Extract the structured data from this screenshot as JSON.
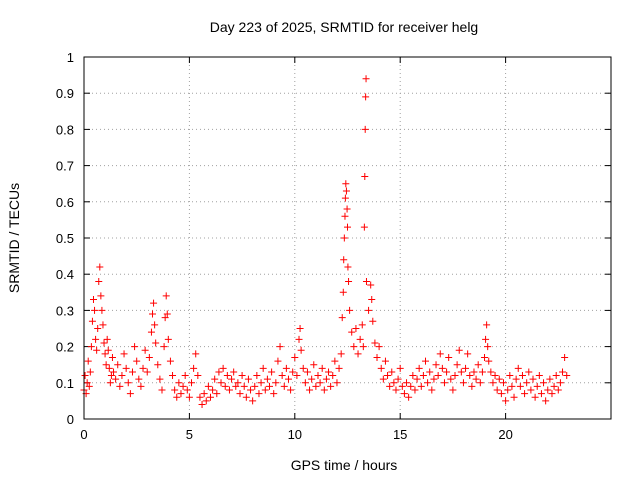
{
  "chart_data": {
    "type": "scatter",
    "title": "Day 223 of 2025, SRMTID for receiver helg",
    "xlabel": "GPS time / hours",
    "ylabel": "SRMTID / TECUs",
    "xlim": [
      0,
      25
    ],
    "ylim": [
      0,
      1
    ],
    "xticks": [
      0,
      5,
      10,
      15,
      20
    ],
    "xtick_labels": [
      "0",
      "5",
      "10",
      "15",
      "20"
    ],
    "yticks": [
      0,
      0.1,
      0.2,
      0.3,
      0.4,
      0.5,
      0.6,
      0.7,
      0.8,
      0.9,
      1
    ],
    "ytick_labels": [
      "0",
      "0.1",
      "0.2",
      "0.3",
      "0.4",
      "0.5",
      "0.6",
      "0.7",
      "0.8",
      "0.9",
      "1"
    ],
    "grid": true,
    "marker": "+",
    "color": "#ff0000",
    "series": [
      {
        "name": "SRMTID",
        "points": [
          [
            0.0,
            0.08
          ],
          [
            0.05,
            0.12
          ],
          [
            0.1,
            0.07
          ],
          [
            0.15,
            0.1
          ],
          [
            0.2,
            0.16
          ],
          [
            0.25,
            0.09
          ],
          [
            0.3,
            0.13
          ],
          [
            0.35,
            0.2
          ],
          [
            0.4,
            0.27
          ],
          [
            0.45,
            0.33
          ],
          [
            0.5,
            0.3
          ],
          [
            0.55,
            0.22
          ],
          [
            0.6,
            0.19
          ],
          [
            0.65,
            0.25
          ],
          [
            0.7,
            0.38
          ],
          [
            0.75,
            0.42
          ],
          [
            0.8,
            0.34
          ],
          [
            0.85,
            0.3
          ],
          [
            0.9,
            0.26
          ],
          [
            0.95,
            0.21
          ],
          [
            1.0,
            0.18
          ],
          [
            1.05,
            0.15
          ],
          [
            1.1,
            0.22
          ],
          [
            1.15,
            0.19
          ],
          [
            1.2,
            0.14
          ],
          [
            1.25,
            0.1
          ],
          [
            1.3,
            0.12
          ],
          [
            1.35,
            0.17
          ],
          [
            1.4,
            0.13
          ],
          [
            1.5,
            0.11
          ],
          [
            1.6,
            0.15
          ],
          [
            1.7,
            0.09
          ],
          [
            1.8,
            0.12
          ],
          [
            1.9,
            0.18
          ],
          [
            2.0,
            0.14
          ],
          [
            2.1,
            0.1
          ],
          [
            2.2,
            0.07
          ],
          [
            2.3,
            0.13
          ],
          [
            2.4,
            0.2
          ],
          [
            2.5,
            0.16
          ],
          [
            2.6,
            0.11
          ],
          [
            2.7,
            0.09
          ],
          [
            2.8,
            0.14
          ],
          [
            2.9,
            0.19
          ],
          [
            3.0,
            0.13
          ],
          [
            3.1,
            0.17
          ],
          [
            3.2,
            0.24
          ],
          [
            3.25,
            0.29
          ],
          [
            3.3,
            0.32
          ],
          [
            3.35,
            0.26
          ],
          [
            3.4,
            0.21
          ],
          [
            3.5,
            0.15
          ],
          [
            3.6,
            0.11
          ],
          [
            3.7,
            0.08
          ],
          [
            3.8,
            0.2
          ],
          [
            3.85,
            0.28
          ],
          [
            3.9,
            0.34
          ],
          [
            3.95,
            0.29
          ],
          [
            4.0,
            0.22
          ],
          [
            4.1,
            0.16
          ],
          [
            4.2,
            0.12
          ],
          [
            4.3,
            0.08
          ],
          [
            4.4,
            0.06
          ],
          [
            4.5,
            0.1
          ],
          [
            4.6,
            0.07
          ],
          [
            4.7,
            0.09
          ],
          [
            4.8,
            0.12
          ],
          [
            4.9,
            0.08
          ],
          [
            5.0,
            0.06
          ],
          [
            5.1,
            0.1
          ],
          [
            5.2,
            0.14
          ],
          [
            5.3,
            0.18
          ],
          [
            5.4,
            0.12
          ],
          [
            5.5,
            0.06
          ],
          [
            5.6,
            0.04
          ],
          [
            5.7,
            0.07
          ],
          [
            5.8,
            0.05
          ],
          [
            5.9,
            0.09
          ],
          [
            6.0,
            0.06
          ],
          [
            6.1,
            0.08
          ],
          [
            6.2,
            0.11
          ],
          [
            6.3,
            0.07
          ],
          [
            6.4,
            0.13
          ],
          [
            6.5,
            0.1
          ],
          [
            6.6,
            0.14
          ],
          [
            6.7,
            0.09
          ],
          [
            6.8,
            0.12
          ],
          [
            6.9,
            0.08
          ],
          [
            7.0,
            0.11
          ],
          [
            7.1,
            0.13
          ],
          [
            7.2,
            0.09
          ],
          [
            7.3,
            0.1
          ],
          [
            7.4,
            0.07
          ],
          [
            7.5,
            0.12
          ],
          [
            7.6,
            0.09
          ],
          [
            7.7,
            0.06
          ],
          [
            7.8,
            0.11
          ],
          [
            7.9,
            0.08
          ],
          [
            8.0,
            0.05
          ],
          [
            8.1,
            0.09
          ],
          [
            8.2,
            0.12
          ],
          [
            8.3,
            0.07
          ],
          [
            8.4,
            0.1
          ],
          [
            8.5,
            0.14
          ],
          [
            8.6,
            0.08
          ],
          [
            8.7,
            0.11
          ],
          [
            8.8,
            0.09
          ],
          [
            8.9,
            0.13
          ],
          [
            9.0,
            0.07
          ],
          [
            9.1,
            0.1
          ],
          [
            9.2,
            0.16
          ],
          [
            9.3,
            0.2
          ],
          [
            9.4,
            0.12
          ],
          [
            9.5,
            0.09
          ],
          [
            9.6,
            0.14
          ],
          [
            9.7,
            0.11
          ],
          [
            9.8,
            0.08
          ],
          [
            9.9,
            0.13
          ],
          [
            10.0,
            0.17
          ],
          [
            10.1,
            0.12
          ],
          [
            10.2,
            0.22
          ],
          [
            10.25,
            0.25
          ],
          [
            10.3,
            0.19
          ],
          [
            10.4,
            0.14
          ],
          [
            10.5,
            0.1
          ],
          [
            10.6,
            0.13
          ],
          [
            10.7,
            0.08
          ],
          [
            10.8,
            0.11
          ],
          [
            10.9,
            0.15
          ],
          [
            11.0,
            0.09
          ],
          [
            11.1,
            0.12
          ],
          [
            11.2,
            0.1
          ],
          [
            11.3,
            0.14
          ],
          [
            11.4,
            0.08
          ],
          [
            11.5,
            0.11
          ],
          [
            11.6,
            0.13
          ],
          [
            11.7,
            0.09
          ],
          [
            11.8,
            0.12
          ],
          [
            11.9,
            0.16
          ],
          [
            12.0,
            0.1
          ],
          [
            12.1,
            0.14
          ],
          [
            12.2,
            0.18
          ],
          [
            12.25,
            0.28
          ],
          [
            12.3,
            0.35
          ],
          [
            12.32,
            0.44
          ],
          [
            12.35,
            0.5
          ],
          [
            12.38,
            0.56
          ],
          [
            12.4,
            0.61
          ],
          [
            12.42,
            0.65
          ],
          [
            12.45,
            0.63
          ],
          [
            12.48,
            0.58
          ],
          [
            12.5,
            0.53
          ],
          [
            12.52,
            0.42
          ],
          [
            12.55,
            0.38
          ],
          [
            12.6,
            0.3
          ],
          [
            12.7,
            0.24
          ],
          [
            12.8,
            0.2
          ],
          [
            12.9,
            0.25
          ],
          [
            13.0,
            0.18
          ],
          [
            13.1,
            0.22
          ],
          [
            13.2,
            0.26
          ],
          [
            13.25,
            0.2
          ],
          [
            13.3,
            0.53
          ],
          [
            13.32,
            0.67
          ],
          [
            13.34,
            0.8
          ],
          [
            13.36,
            0.89
          ],
          [
            13.38,
            0.94
          ],
          [
            13.4,
            0.38
          ],
          [
            13.5,
            0.3
          ],
          [
            13.6,
            0.37
          ],
          [
            13.65,
            0.33
          ],
          [
            13.7,
            0.27
          ],
          [
            13.8,
            0.21
          ],
          [
            13.9,
            0.17
          ],
          [
            14.0,
            0.2
          ],
          [
            14.1,
            0.14
          ],
          [
            14.2,
            0.11
          ],
          [
            14.3,
            0.16
          ],
          [
            14.4,
            0.12
          ],
          [
            14.5,
            0.09
          ],
          [
            14.6,
            0.13
          ],
          [
            14.7,
            0.1
          ],
          [
            14.8,
            0.08
          ],
          [
            14.9,
            0.11
          ],
          [
            15.0,
            0.14
          ],
          [
            15.1,
            0.09
          ],
          [
            15.2,
            0.07
          ],
          [
            15.3,
            0.1
          ],
          [
            15.4,
            0.06
          ],
          [
            15.5,
            0.09
          ],
          [
            15.6,
            0.12
          ],
          [
            15.7,
            0.08
          ],
          [
            15.8,
            0.11
          ],
          [
            15.9,
            0.14
          ],
          [
            16.0,
            0.09
          ],
          [
            16.1,
            0.12
          ],
          [
            16.2,
            0.16
          ],
          [
            16.3,
            0.1
          ],
          [
            16.4,
            0.13
          ],
          [
            16.5,
            0.08
          ],
          [
            16.6,
            0.11
          ],
          [
            16.7,
            0.15
          ],
          [
            16.8,
            0.12
          ],
          [
            16.9,
            0.18
          ],
          [
            17.0,
            0.14
          ],
          [
            17.1,
            0.1
          ],
          [
            17.2,
            0.13
          ],
          [
            17.3,
            0.17
          ],
          [
            17.4,
            0.11
          ],
          [
            17.5,
            0.08
          ],
          [
            17.6,
            0.12
          ],
          [
            17.7,
            0.15
          ],
          [
            17.8,
            0.19
          ],
          [
            17.9,
            0.13
          ],
          [
            18.0,
            0.1
          ],
          [
            18.1,
            0.14
          ],
          [
            18.2,
            0.18
          ],
          [
            18.3,
            0.12
          ],
          [
            18.4,
            0.09
          ],
          [
            18.5,
            0.13
          ],
          [
            18.6,
            0.11
          ],
          [
            18.7,
            0.15
          ],
          [
            18.8,
            0.1
          ],
          [
            18.9,
            0.13
          ],
          [
            19.0,
            0.17
          ],
          [
            19.05,
            0.22
          ],
          [
            19.1,
            0.26
          ],
          [
            19.15,
            0.2
          ],
          [
            19.2,
            0.16
          ],
          [
            19.3,
            0.13
          ],
          [
            19.4,
            0.1
          ],
          [
            19.5,
            0.12
          ],
          [
            19.6,
            0.08
          ],
          [
            19.7,
            0.11
          ],
          [
            19.8,
            0.07
          ],
          [
            19.9,
            0.1
          ],
          [
            20.0,
            0.05
          ],
          [
            20.1,
            0.08
          ],
          [
            20.2,
            0.12
          ],
          [
            20.3,
            0.09
          ],
          [
            20.4,
            0.06
          ],
          [
            20.5,
            0.11
          ],
          [
            20.6,
            0.14
          ],
          [
            20.7,
            0.09
          ],
          [
            20.8,
            0.12
          ],
          [
            20.9,
            0.07
          ],
          [
            21.0,
            0.1
          ],
          [
            21.1,
            0.13
          ],
          [
            21.2,
            0.08
          ],
          [
            21.3,
            0.11
          ],
          [
            21.4,
            0.06
          ],
          [
            21.5,
            0.09
          ],
          [
            21.6,
            0.12
          ],
          [
            21.7,
            0.07
          ],
          [
            21.8,
            0.1
          ],
          [
            21.9,
            0.05
          ],
          [
            22.0,
            0.08
          ],
          [
            22.1,
            0.11
          ],
          [
            22.2,
            0.07
          ],
          [
            22.3,
            0.09
          ],
          [
            22.4,
            0.12
          ],
          [
            22.5,
            0.08
          ],
          [
            22.6,
            0.1
          ],
          [
            22.7,
            0.13
          ],
          [
            22.8,
            0.17
          ],
          [
            22.9,
            0.12
          ]
        ]
      }
    ]
  }
}
